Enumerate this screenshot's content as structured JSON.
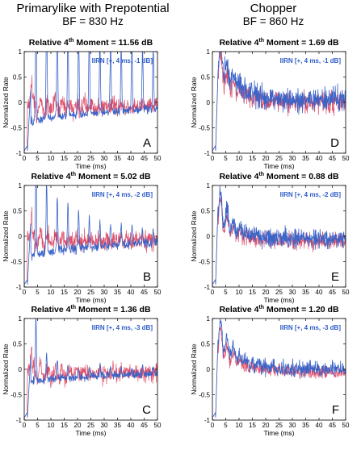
{
  "header": {
    "left": {
      "title": "Primarylike with Prepotential",
      "subtitle": "BF = 830 Hz"
    },
    "right": {
      "title": "Chopper",
      "subtitle": "BF = 860 Hz"
    }
  },
  "colors": {
    "series_blue": "#3a64c8",
    "series_red": "#e0506a",
    "stim_label": "#2f5cc8"
  },
  "chart_data": [
    {
      "type": "line",
      "panel": "A",
      "title_prefix": "Relative 4",
      "title_sup": "th",
      "title_suffix": " Moment = 11.56 dB",
      "stimulus_label": "IIRN [+, 4 ms, -1 dB]",
      "xlabel": "Time (ms)",
      "ylabel": "Normalized Rate",
      "xlim": [
        0,
        50
      ],
      "ylim": [
        -1,
        1
      ],
      "xticks": [
        0,
        5,
        10,
        15,
        20,
        25,
        30,
        35,
        40,
        45,
        50
      ],
      "yticks": [
        -1,
        -0.5,
        0,
        0.5,
        1
      ],
      "ytick_labels": [
        "-1",
        "-0.5",
        "0",
        "0.5",
        "1"
      ],
      "profile": {
        "kind": "primarylike",
        "peak0": 1.85,
        "peak_decay": 0.06,
        "peak_floor": 0.9,
        "trough": -0.35,
        "noise": 0.05,
        "onset": -0.95
      }
    },
    {
      "type": "line",
      "panel": "D",
      "title_prefix": "Relative 4",
      "title_sup": "th",
      "title_suffix": " Moment = 1.69 dB",
      "stimulus_label": "IIRN [+, 4 ms, -1 dB]",
      "xlabel": "Time (ms)",
      "ylabel": "Normalized Rate",
      "xlim": [
        0,
        50
      ],
      "ylim": [
        -1,
        1
      ],
      "xticks": [
        0,
        5,
        10,
        15,
        20,
        25,
        30,
        35,
        40,
        45,
        50
      ],
      "yticks": [
        -1,
        -0.5,
        0,
        0.5,
        1
      ],
      "ytick_labels": [
        "-1",
        "-0.5",
        "0",
        "0.5",
        "1"
      ],
      "profile": {
        "kind": "chopper",
        "peak0": 0.9,
        "peak_decay": 0.15,
        "noise": 0.28,
        "baseline": 0.05,
        "onset": -0.95
      }
    },
    {
      "type": "line",
      "panel": "B",
      "title_prefix": "Relative 4",
      "title_sup": "th",
      "title_suffix": " Moment = 5.02 dB",
      "stimulus_label": "IIRN [+, 4 ms, -2 dB]",
      "xlabel": "Time (ms)",
      "ylabel": "Normalized Rate",
      "xlim": [
        0,
        50
      ],
      "ylim": [
        -1,
        1
      ],
      "xticks": [
        0,
        5,
        10,
        15,
        20,
        25,
        30,
        35,
        40,
        45,
        50
      ],
      "yticks": [
        -1,
        -0.5,
        0,
        0.5,
        1
      ],
      "ytick_labels": [
        "-1",
        "-0.5",
        "0",
        "0.5",
        "1"
      ],
      "profile": {
        "kind": "primarylike",
        "peak0": 1.5,
        "peak_decay": 0.08,
        "peak_floor": 0.1,
        "trough": -0.35,
        "noise": 0.06,
        "onset": -0.95
      }
    },
    {
      "type": "line",
      "panel": "E",
      "title_prefix": "Relative 4",
      "title_sup": "th",
      "title_suffix": " Moment = 0.88 dB",
      "stimulus_label": "IIRN [+, 4 ms, -2 dB]",
      "xlabel": "Time (ms)",
      "ylabel": "Normalized Rate",
      "xlim": [
        0,
        50
      ],
      "ylim": [
        -1,
        1
      ],
      "xticks": [
        0,
        5,
        10,
        15,
        20,
        25,
        30,
        35,
        40,
        45,
        50
      ],
      "yticks": [
        -1,
        -0.5,
        0,
        0.5,
        1
      ],
      "ytick_labels": [
        "-1",
        "-0.5",
        "0",
        "0.5",
        "1"
      ],
      "profile": {
        "kind": "chopper",
        "peak0": 0.7,
        "peak_decay": 0.2,
        "noise": 0.22,
        "baseline": -0.05,
        "onset": -0.95
      }
    },
    {
      "type": "line",
      "panel": "C",
      "title_prefix": "Relative 4",
      "title_sup": "th",
      "title_suffix": " Moment = 1.36 dB",
      "stimulus_label": "IIRN [+, 4 ms, -3 dB]",
      "xlabel": "Time (ms)",
      "ylabel": "Normalized Rate",
      "xlim": [
        0,
        50
      ],
      "ylim": [
        -1,
        1
      ],
      "xticks": [
        0,
        5,
        10,
        15,
        20,
        25,
        30,
        35,
        40,
        45,
        50
      ],
      "yticks": [
        -1,
        -0.5,
        0,
        0.5,
        1
      ],
      "ytick_labels": [
        "-1",
        "-0.5",
        "0",
        "0.5",
        "1"
      ],
      "profile": {
        "kind": "primarylike",
        "peak0": 1.15,
        "peak_decay": 0.3,
        "peak_floor": 0.05,
        "trough": -0.2,
        "noise": 0.05,
        "onset": -0.95
      }
    },
    {
      "type": "line",
      "panel": "F",
      "title_prefix": "Relative 4",
      "title_sup": "th",
      "title_suffix": " Moment = 1.20 dB",
      "stimulus_label": "IIRN [+, 4 ms, -3 dB]",
      "xlabel": "Time (ms)",
      "ylabel": "Normalized Rate",
      "xlim": [
        0,
        50
      ],
      "ylim": [
        -1,
        1
      ],
      "xticks": [
        0,
        5,
        10,
        15,
        20,
        25,
        30,
        35,
        40,
        45,
        50
      ],
      "yticks": [
        -1,
        -0.5,
        0,
        0.5,
        1
      ],
      "ytick_labels": [
        "-1",
        "-0.5",
        "0",
        "0.5",
        "1"
      ],
      "profile": {
        "kind": "chopper",
        "peak0": 0.75,
        "peak_decay": 0.15,
        "noise": 0.18,
        "baseline": 0.0,
        "onset": -0.95
      }
    }
  ]
}
